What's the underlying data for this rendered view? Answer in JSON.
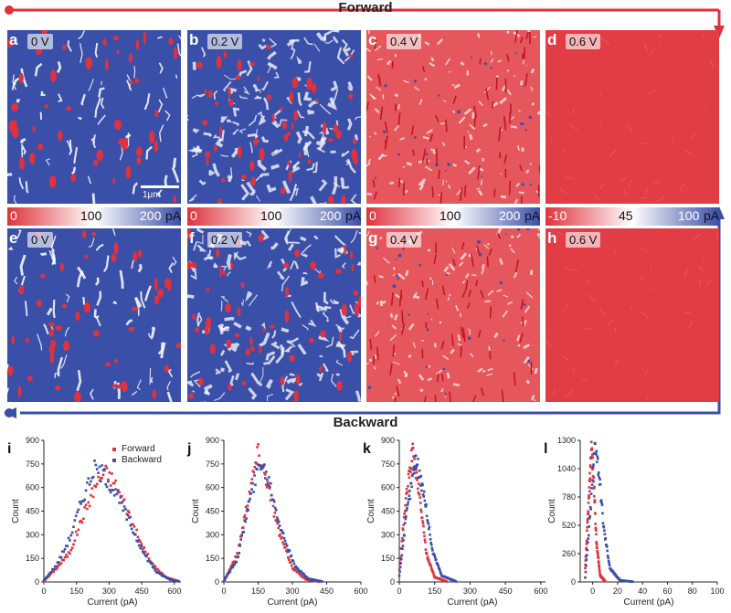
{
  "flow": {
    "forward": "Forward",
    "backward": "Backward",
    "forward_color": "#e0323c",
    "backward_color": "#3a4fa8"
  },
  "scale_bar": "1μm",
  "panels": [
    {
      "letter": "a",
      "voltage": "0 V",
      "theme": "blue"
    },
    {
      "letter": "b",
      "voltage": "0.2 V",
      "theme": "mixed"
    },
    {
      "letter": "c",
      "voltage": "0.4 V",
      "theme": "red"
    },
    {
      "letter": "d",
      "voltage": "0.6 V",
      "theme": "solid"
    },
    {
      "letter": "e",
      "voltage": "0 V",
      "theme": "blue"
    },
    {
      "letter": "f",
      "voltage": "0.2 V",
      "theme": "mixed"
    },
    {
      "letter": "g",
      "voltage": "0.4 V",
      "theme": "red"
    },
    {
      "letter": "h",
      "voltage": "0.6 V",
      "theme": "solid"
    }
  ],
  "colorbars": [
    {
      "min": "0",
      "mid": "100",
      "max": "200",
      "unit": "pA"
    },
    {
      "min": "0",
      "mid": "100",
      "max": "200",
      "unit": "pA"
    },
    {
      "min": "0",
      "mid": "100",
      "max": "200",
      "unit": "pA"
    },
    {
      "min": "-10",
      "mid": "45",
      "max": "100",
      "unit": "pA"
    }
  ],
  "colors": {
    "red": "#e0323c",
    "blue": "#3a4fa8",
    "white": "#ffffff"
  },
  "chart_data": [
    {
      "type": "scatter",
      "label": "i",
      "xlabel": "Current (pA)",
      "ylabel": "Count",
      "xlim": [
        0,
        630
      ],
      "ylim": [
        0,
        900
      ],
      "xticks": [
        0,
        150,
        300,
        450,
        600
      ],
      "yticks": [
        0,
        150,
        300,
        450,
        600,
        750,
        900
      ],
      "legend": [
        "Forward",
        "Backward"
      ],
      "legend_position": "top-right",
      "series": [
        {
          "name": "Forward",
          "center": 280,
          "width": 100,
          "peak": 700,
          "points": [
            [
              0,
              5
            ],
            [
              60,
              90
            ],
            [
              120,
              190
            ],
            [
              180,
              420
            ],
            [
              240,
              620
            ],
            [
              280,
              700
            ],
            [
              320,
              640
            ],
            [
              380,
              470
            ],
            [
              440,
              260
            ],
            [
              500,
              110
            ],
            [
              560,
              30
            ],
            [
              620,
              5
            ]
          ]
        },
        {
          "name": "Backward",
          "center": 240,
          "width": 100,
          "peak": 720,
          "points": [
            [
              0,
              10
            ],
            [
              60,
              110
            ],
            [
              120,
              280
            ],
            [
              180,
              540
            ],
            [
              230,
              720
            ],
            [
              280,
              680
            ],
            [
              340,
              540
            ],
            [
              400,
              360
            ],
            [
              460,
              180
            ],
            [
              520,
              60
            ],
            [
              580,
              15
            ],
            [
              620,
              3
            ]
          ]
        }
      ]
    },
    {
      "type": "scatter",
      "label": "j",
      "xlabel": "Current (pA)",
      "ylabel": "Count",
      "xlim": [
        0,
        600
      ],
      "ylim": [
        0,
        900
      ],
      "xticks": [
        0,
        150,
        300,
        450,
        600
      ],
      "yticks": [
        0,
        150,
        300,
        450,
        600,
        750,
        900
      ],
      "series": [
        {
          "name": "Forward",
          "center": 150,
          "width": 60,
          "peak": 830,
          "points": [
            [
              0,
              5
            ],
            [
              60,
              180
            ],
            [
              110,
              560
            ],
            [
              150,
              830
            ],
            [
              190,
              640
            ],
            [
              240,
              320
            ],
            [
              300,
              90
            ],
            [
              360,
              15
            ],
            [
              420,
              2
            ]
          ]
        },
        {
          "name": "Backward",
          "center": 160,
          "width": 62,
          "peak": 780,
          "points": [
            [
              0,
              5
            ],
            [
              60,
              150
            ],
            [
              110,
              500
            ],
            [
              160,
              780
            ],
            [
              200,
              640
            ],
            [
              250,
              340
            ],
            [
              310,
              100
            ],
            [
              370,
              20
            ],
            [
              430,
              3
            ]
          ]
        }
      ]
    },
    {
      "type": "scatter",
      "label": "k",
      "xlabel": "Current (pA)",
      "ylabel": "Count",
      "xlim": [
        0,
        620
      ],
      "ylim": [
        0,
        900
      ],
      "xticks": [
        0,
        150,
        300,
        450,
        600
      ],
      "yticks": [
        0,
        150,
        300,
        450,
        600,
        750,
        900
      ],
      "series": [
        {
          "name": "Forward",
          "center": 55,
          "width": 28,
          "peak": 830,
          "points": [
            [
              0,
              80
            ],
            [
              25,
              480
            ],
            [
              55,
              830
            ],
            [
              85,
              560
            ],
            [
              115,
              180
            ],
            [
              150,
              30
            ],
            [
              200,
              3
            ]
          ]
        },
        {
          "name": "Backward",
          "center": 70,
          "width": 32,
          "peak": 790,
          "points": [
            [
              0,
              40
            ],
            [
              30,
              420
            ],
            [
              70,
              790
            ],
            [
              105,
              560
            ],
            [
              140,
              200
            ],
            [
              180,
              40
            ],
            [
              240,
              3
            ]
          ]
        }
      ]
    },
    {
      "type": "scatter",
      "label": "l",
      "xlabel": "Current (pA)",
      "ylabel": "Count",
      "xlim": [
        -10,
        100
      ],
      "ylim": [
        0,
        1300
      ],
      "xticks": [
        0,
        20,
        40,
        60,
        80,
        100
      ],
      "yticks": [
        0,
        260,
        520,
        780,
        1040,
        1300
      ],
      "series": [
        {
          "name": "Forward",
          "center": -1,
          "width": 3,
          "peak": 1250,
          "points": [
            [
              -6,
              120
            ],
            [
              -3,
              780
            ],
            [
              -1,
              1250
            ],
            [
              1,
              900
            ],
            [
              3,
              360
            ],
            [
              6,
              60
            ],
            [
              10,
              5
            ]
          ]
        },
        {
          "name": "Backward",
          "center": 2,
          "width": 5,
          "peak": 1300,
          "points": [
            [
              -6,
              40
            ],
            [
              -2,
              620
            ],
            [
              2,
              1300
            ],
            [
              5,
              1000
            ],
            [
              9,
              480
            ],
            [
              14,
              120
            ],
            [
              22,
              15
            ],
            [
              32,
              2
            ]
          ]
        }
      ]
    }
  ]
}
